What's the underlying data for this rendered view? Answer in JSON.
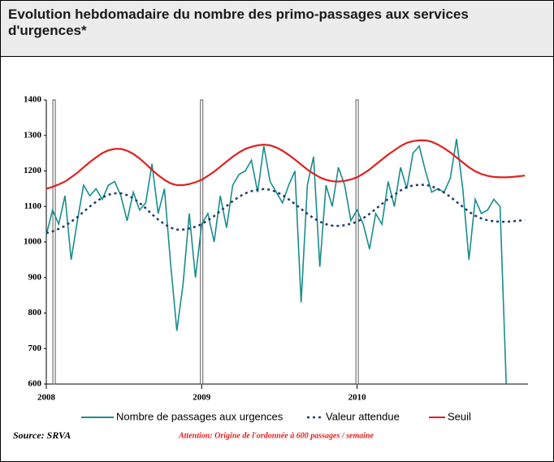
{
  "chart_data": {
    "type": "line",
    "title": "Evolution hebdomadaire du nombre des primo-passages  aux services d'urgences*",
    "source": "Source: SRVA",
    "note": "Attention: Origine de l'ordonnée à 600 passages / semaine",
    "x": [
      2008.0,
      2008.04,
      2008.08,
      2008.12,
      2008.16,
      2008.2,
      2008.24,
      2008.28,
      2008.32,
      2008.36,
      2008.4,
      2008.44,
      2008.48,
      2008.52,
      2008.56,
      2008.6,
      2008.64,
      2008.68,
      2008.72,
      2008.76,
      2008.8,
      2008.84,
      2008.88,
      2008.92,
      2008.96,
      2009.0,
      2009.04,
      2009.08,
      2009.12,
      2009.16,
      2009.2,
      2009.24,
      2009.28,
      2009.32,
      2009.36,
      2009.4,
      2009.44,
      2009.48,
      2009.52,
      2009.56,
      2009.6,
      2009.64,
      2009.68,
      2009.72,
      2009.76,
      2009.8,
      2009.84,
      2009.88,
      2009.92,
      2009.96,
      2010.0,
      2010.04,
      2010.08,
      2010.12,
      2010.16,
      2010.2,
      2010.24,
      2010.28,
      2010.32,
      2010.36,
      2010.4,
      2010.44,
      2010.48,
      2010.52,
      2010.56,
      2010.6,
      2010.64,
      2010.68,
      2010.72,
      2010.76,
      2010.8,
      2010.84,
      2010.88,
      2010.92,
      2010.96,
      2011.0,
      2011.04,
      2011.08
    ],
    "series": [
      {
        "name": "Nombre de passages aux urgences",
        "color": "#1a8c8c",
        "style": "solid",
        "values": [
          1020,
          1090,
          1050,
          1130,
          950,
          1060,
          1160,
          1130,
          1150,
          1120,
          1160,
          1170,
          1130,
          1060,
          1140,
          1090,
          1110,
          1220,
          1080,
          1150,
          940,
          750,
          880,
          1080,
          900,
          1050,
          1080,
          1000,
          1130,
          1040,
          1160,
          1190,
          1200,
          1230,
          1140,
          1270,
          1170,
          1140,
          1110,
          1160,
          1200,
          830,
          1160,
          1240,
          930,
          1160,
          1100,
          1210,
          1160,
          1060,
          1090,
          1050,
          980,
          1080,
          1050,
          1170,
          1100,
          1210,
          1150,
          1250,
          1270,
          1200,
          1140,
          1150,
          1140,
          1180,
          1290,
          1150,
          950,
          1120,
          1080,
          1090,
          1120,
          1100,
          600,
          null,
          null,
          null
        ]
      },
      {
        "name": "Valeur attendue",
        "color": "#1f3a6e",
        "style": "dotted",
        "values": [
          1025,
          1030,
          1037,
          1045,
          1057,
          1070,
          1085,
          1100,
          1113,
          1125,
          1133,
          1137,
          1137,
          1132,
          1123,
          1110,
          1095,
          1078,
          1063,
          1050,
          1040,
          1035,
          1035,
          1038,
          1043,
          1050,
          1061,
          1073,
          1087,
          1101,
          1115,
          1127,
          1137,
          1143,
          1147,
          1149,
          1147,
          1141,
          1132,
          1120,
          1107,
          1093,
          1079,
          1067,
          1057,
          1050,
          1046,
          1045,
          1047,
          1051,
          1057,
          1067,
          1079,
          1093,
          1107,
          1121,
          1133,
          1145,
          1154,
          1159,
          1161,
          1161,
          1157,
          1149,
          1139,
          1127,
          1113,
          1099,
          1085,
          1074,
          1066,
          1061,
          1058,
          1057,
          1057,
          1058,
          1060,
          1062
        ]
      },
      {
        "name": "Seuil",
        "color": "#e02020",
        "style": "solid",
        "values": [
          1150,
          1155,
          1162,
          1170,
          1182,
          1195,
          1210,
          1225,
          1238,
          1250,
          1258,
          1262,
          1262,
          1257,
          1248,
          1235,
          1220,
          1203,
          1188,
          1175,
          1165,
          1160,
          1160,
          1163,
          1168,
          1175,
          1186,
          1198,
          1212,
          1226,
          1240,
          1252,
          1262,
          1268,
          1272,
          1274,
          1272,
          1266,
          1257,
          1245,
          1232,
          1218,
          1204,
          1192,
          1182,
          1175,
          1171,
          1170,
          1172,
          1176,
          1182,
          1192,
          1204,
          1218,
          1232,
          1246,
          1258,
          1270,
          1279,
          1284,
          1286,
          1286,
          1282,
          1274,
          1264,
          1252,
          1238,
          1224,
          1210,
          1199,
          1191,
          1186,
          1183,
          1182,
          1182,
          1183,
          1185,
          1187
        ]
      }
    ],
    "year_markers": [
      2008.05,
      2009,
      2010
    ],
    "xlim": [
      2008,
      2011.1
    ],
    "xticks": [
      2008,
      2009,
      2010
    ],
    "ylim": [
      600,
      1400
    ],
    "yticks": [
      600,
      700,
      800,
      900,
      1000,
      1100,
      1200,
      1300,
      1400
    ]
  }
}
